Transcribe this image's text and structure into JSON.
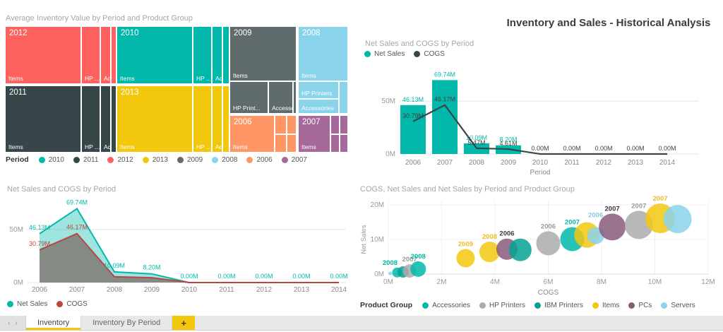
{
  "main_title": "Inventory and Sales - Historical Analysis",
  "chart_data": [
    {
      "type": "treemap",
      "title": "Average Inventory Value by Period and Product Group",
      "legend_title": "Period",
      "legend": [
        {
          "label": "2010",
          "color": "#01B8AA"
        },
        {
          "label": "2011",
          "color": "#374649"
        },
        {
          "label": "2012",
          "color": "#FD625E"
        },
        {
          "label": "2013",
          "color": "#F2C80F"
        },
        {
          "label": "2009",
          "color": "#5F6B6D"
        },
        {
          "label": "2008",
          "color": "#8AD4EB"
        },
        {
          "label": "2006",
          "color": "#FE9666"
        },
        {
          "label": "2007",
          "color": "#A66999"
        }
      ],
      "tiles": [
        {
          "x": 0,
          "y": 0,
          "w": 108,
          "h": 82,
          "c": "#FD625E",
          "year": "2012",
          "name": "Items"
        },
        {
          "x": 108,
          "y": 0,
          "w": 27,
          "h": 82,
          "c": "#FD625E",
          "name": "HP ..."
        },
        {
          "x": 135,
          "y": 0,
          "w": 15,
          "h": 82,
          "c": "#FD625E",
          "name": "Acc..."
        },
        {
          "x": 150,
          "y": 0,
          "w": 8,
          "h": 82,
          "c": "#FD625E",
          "name": ""
        },
        {
          "x": 158,
          "y": 0,
          "w": 108,
          "h": 82,
          "c": "#01B8AA",
          "year": "2010",
          "name": "Items"
        },
        {
          "x": 266,
          "y": 0,
          "w": 27,
          "h": 82,
          "c": "#01B8AA",
          "name": "HP ..."
        },
        {
          "x": 293,
          "y": 0,
          "w": 15,
          "h": 82,
          "c": "#01B8AA",
          "name": "Acc..."
        },
        {
          "x": 308,
          "y": 0,
          "w": 10,
          "h": 82,
          "c": "#01B8AA",
          "name": ""
        },
        {
          "x": 318,
          "y": 0,
          "w": 95,
          "h": 78,
          "c": "#5F6B6D",
          "year": "2009",
          "name": "Items"
        },
        {
          "x": 318,
          "y": 78,
          "w": 55,
          "h": 46,
          "c": "#5F6B6D",
          "name": "HP Print..."
        },
        {
          "x": 373,
          "y": 78,
          "w": 35,
          "h": 46,
          "c": "#5F6B6D",
          "name": "Accesso..."
        },
        {
          "x": 408,
          "y": 78,
          "w": 5,
          "h": 46,
          "c": "#5F6B6D",
          "name": ""
        },
        {
          "x": 415,
          "y": 0,
          "w": 71,
          "h": 78,
          "c": "#8AD4EB",
          "year": "2008",
          "name": "Items"
        },
        {
          "x": 415,
          "y": 78,
          "w": 58,
          "h": 25,
          "c": "#8AD4EB",
          "name": "HP Printers"
        },
        {
          "x": 415,
          "y": 103,
          "w": 58,
          "h": 21,
          "c": "#8AD4EB",
          "name": "Accessories"
        },
        {
          "x": 473,
          "y": 78,
          "w": 13,
          "h": 46,
          "c": "#8AD4EB",
          "name": ""
        },
        {
          "x": 0,
          "y": 84,
          "w": 108,
          "h": 95,
          "c": "#374649",
          "year": "2011",
          "name": "Items"
        },
        {
          "x": 108,
          "y": 84,
          "w": 27,
          "h": 95,
          "c": "#374649",
          "name": "HP ..."
        },
        {
          "x": 135,
          "y": 84,
          "w": 15,
          "h": 95,
          "c": "#374649",
          "name": "Acc..."
        },
        {
          "x": 150,
          "y": 84,
          "w": 8,
          "h": 95,
          "c": "#374649",
          "name": ""
        },
        {
          "x": 158,
          "y": 84,
          "w": 108,
          "h": 95,
          "c": "#F2C80F",
          "year": "2013",
          "name": "Items"
        },
        {
          "x": 266,
          "y": 84,
          "w": 27,
          "h": 95,
          "c": "#F2C80F",
          "name": "HP ..."
        },
        {
          "x": 293,
          "y": 84,
          "w": 15,
          "h": 95,
          "c": "#F2C80F",
          "name": "Acc..."
        },
        {
          "x": 308,
          "y": 84,
          "w": 10,
          "h": 95,
          "c": "#F2C80F",
          "name": ""
        },
        {
          "x": 318,
          "y": 126,
          "w": 64,
          "h": 53,
          "c": "#FE9666",
          "year": "2006",
          "name": "Items"
        },
        {
          "x": 382,
          "y": 126,
          "w": 17,
          "h": 27,
          "c": "#FE9666",
          "name": ""
        },
        {
          "x": 399,
          "y": 126,
          "w": 14,
          "h": 27,
          "c": "#FE9666",
          "name": ""
        },
        {
          "x": 382,
          "y": 153,
          "w": 17,
          "h": 26,
          "c": "#FE9666",
          "name": ""
        },
        {
          "x": 399,
          "y": 153,
          "w": 14,
          "h": 26,
          "c": "#FE9666",
          "name": ""
        },
        {
          "x": 415,
          "y": 126,
          "w": 46,
          "h": 53,
          "c": "#A66999",
          "year": "2007",
          "name": "Items"
        },
        {
          "x": 461,
          "y": 126,
          "w": 13,
          "h": 27,
          "c": "#A66999",
          "name": ""
        },
        {
          "x": 474,
          "y": 126,
          "w": 12,
          "h": 27,
          "c": "#A66999",
          "name": ""
        },
        {
          "x": 461,
          "y": 153,
          "w": 13,
          "h": 26,
          "c": "#A66999",
          "name": ""
        },
        {
          "x": 474,
          "y": 153,
          "w": 12,
          "h": 26,
          "c": "#A66999",
          "name": ""
        }
      ]
    },
    {
      "type": "bar",
      "title": "Net Sales and COGS by Period",
      "xlabel": "Period",
      "categories": [
        "2006",
        "2007",
        "2008",
        "2009",
        "2010",
        "2011",
        "2012",
        "2013",
        "2014"
      ],
      "ylim": [
        0,
        75
      ],
      "yticks": [
        {
          "label": "0M",
          "value": 0
        },
        {
          "label": "50M",
          "value": 50
        }
      ],
      "legend": [
        {
          "label": "Net Sales",
          "color": "#01B8AA"
        },
        {
          "label": "COGS",
          "color": "#374649"
        }
      ],
      "series": [
        {
          "name": "Net Sales",
          "kind": "bar",
          "color": "#01B8AA",
          "label_color": "#01B8AA",
          "values": [
            46.13,
            69.74,
            10.09,
            8.2,
            0,
            0,
            0,
            0,
            0
          ],
          "labels": [
            "46.13M",
            "69.74M",
            "10.09M",
            "8.20M",
            "",
            "",
            "",
            "",
            ""
          ]
        },
        {
          "name": "COGS",
          "kind": "line",
          "color": "#374649",
          "label_color": "#404040",
          "values": [
            30.79,
            46.17,
            5.47,
            4.61,
            0,
            0,
            0,
            0,
            0
          ],
          "labels": [
            "30.79M",
            "46.17M",
            "5.47M",
            "4.61M",
            "0.00M",
            "0.00M",
            "0.00M",
            "0.00M",
            "0.00M"
          ]
        }
      ]
    },
    {
      "type": "area",
      "title": "Net Sales and COGS by Period",
      "categories": [
        "2006",
        "2007",
        "2008",
        "2009",
        "2010",
        "2011",
        "2012",
        "2013",
        "2014"
      ],
      "ylim": [
        0,
        75
      ],
      "yticks": [
        {
          "label": "0M",
          "value": 0
        },
        {
          "label": "50M",
          "value": 50
        }
      ],
      "legend": [
        {
          "label": "Net Sales",
          "color": "#01B8AA"
        },
        {
          "label": "COGS",
          "color": "#BC4540"
        }
      ],
      "series": [
        {
          "name": "Net Sales",
          "color": "#01B8AA",
          "fill": "rgba(1,184,170,0.38)",
          "label_color": "#01B8AA",
          "values": [
            46.13,
            69.74,
            10.09,
            8.2,
            0,
            0,
            0,
            0,
            0
          ],
          "labels": [
            "46.13M",
            "69.74M",
            "10.09M",
            "8.20M",
            "0.00M",
            "0.00M",
            "0.00M",
            "0.00M",
            "0.00M"
          ]
        },
        {
          "name": "COGS",
          "color": "#BC4540",
          "fill": "rgba(128,122,117,0.85)",
          "label_color": "#BC4540",
          "values": [
            30.79,
            46.17,
            5.47,
            4.61,
            0,
            0,
            0,
            0,
            0
          ],
          "labels": [
            "30.79M",
            "46.17M",
            "",
            "",
            "",
            "",
            "",
            "",
            ""
          ]
        }
      ]
    },
    {
      "type": "scatter",
      "title": "COGS, Net Sales and Net Sales by Period and Product Group",
      "xlabel": "COGS",
      "ylabel": "Net Sales",
      "xlim": [
        0,
        12
      ],
      "ylim": [
        0,
        20
      ],
      "xticks": [
        {
          "label": "0M",
          "value": 0
        },
        {
          "label": "2M",
          "value": 2
        },
        {
          "label": "4M",
          "value": 4
        },
        {
          "label": "6M",
          "value": 6
        },
        {
          "label": "8M",
          "value": 8
        },
        {
          "label": "10M",
          "value": 10
        },
        {
          "label": "12M",
          "value": 12
        }
      ],
      "yticks": [
        {
          "label": "0M",
          "value": 0
        },
        {
          "label": "10M",
          "value": 10
        },
        {
          "label": "20M",
          "value": 20
        }
      ],
      "legend_title": "Product Group",
      "groups": [
        {
          "name": "Accessories",
          "color": "#01B8AA",
          "label_color": "#01B8AA"
        },
        {
          "name": "HP Printers",
          "color": "#ACACAC",
          "label_color": "#9A9A9A"
        },
        {
          "name": "IBM Printers",
          "color": "#05A294",
          "label_color": "#05A294"
        },
        {
          "name": "Items",
          "color": "#F2C80F",
          "label_color": "#E9BC28"
        },
        {
          "name": "PCs",
          "color": "#875A7D",
          "label_color": "#3F3440"
        },
        {
          "name": "Servers",
          "color": "#8AD4EB",
          "label_color": "#8AC8E0"
        }
      ],
      "points": [
        {
          "group": "Servers",
          "period": "2008",
          "x": 0.07,
          "y": 0.2,
          "r": 2.5,
          "label": ""
        },
        {
          "group": "Accessories",
          "period": "2008",
          "x": 0.33,
          "y": 0.45,
          "r": 7,
          "label": "2008",
          "label_dx": -10
        },
        {
          "group": "IBM Printers",
          "period": "2008",
          "x": 0.55,
          "y": 0.62,
          "r": 8,
          "label": ""
        },
        {
          "group": "HP Printers",
          "period": "2007",
          "x": 0.8,
          "y": 0.9,
          "r": 9.5,
          "label": "2007"
        },
        {
          "group": "Accessories",
          "period": "2008",
          "x": 1.12,
          "y": 1.45,
          "r": 11,
          "label": "2008"
        },
        {
          "group": "Items",
          "period": "2009",
          "x": 2.9,
          "y": 4.6,
          "r": 13,
          "label": "2009"
        },
        {
          "group": "Items",
          "period": "2008",
          "x": 3.8,
          "y": 6.4,
          "r": 14.5,
          "label": "2008"
        },
        {
          "group": "PCs",
          "period": "2006",
          "x": 4.45,
          "y": 7.2,
          "r": 15,
          "label": "2006"
        },
        {
          "group": "IBM Printers",
          "period": "2006",
          "x": 4.95,
          "y": 7.0,
          "r": 16,
          "label": ""
        },
        {
          "group": "HP Printers",
          "period": "2006",
          "x": 6.0,
          "y": 8.9,
          "r": 17,
          "label": "2006"
        },
        {
          "group": "Accessories",
          "period": "2007",
          "x": 6.9,
          "y": 10.1,
          "r": 17,
          "label": "2007"
        },
        {
          "group": "Items",
          "period": "2006",
          "x": 7.45,
          "y": 11.3,
          "r": 18,
          "label": ""
        },
        {
          "group": "Servers",
          "period": "2006",
          "x": 7.78,
          "y": 11.1,
          "r": 12,
          "label": "2006",
          "label_dy": -10
        },
        {
          "group": "PCs",
          "period": "2007",
          "x": 8.4,
          "y": 13.6,
          "r": 19,
          "label": "2007"
        },
        {
          "group": "HP Printers",
          "period": "2007",
          "x": 9.4,
          "y": 14.2,
          "r": 20,
          "label": "2007"
        },
        {
          "group": "Items",
          "period": "2007",
          "x": 10.2,
          "y": 16.1,
          "r": 21,
          "label": "2007"
        },
        {
          "group": "Servers",
          "period": "2007",
          "x": 10.85,
          "y": 15.9,
          "r": 20,
          "label": ""
        }
      ]
    }
  ],
  "tabs": {
    "prev": "‹",
    "next": "›",
    "items": [
      {
        "label": "Inventory",
        "active": true
      },
      {
        "label": "Inventory By Period",
        "active": false
      }
    ],
    "add_label": "+"
  }
}
